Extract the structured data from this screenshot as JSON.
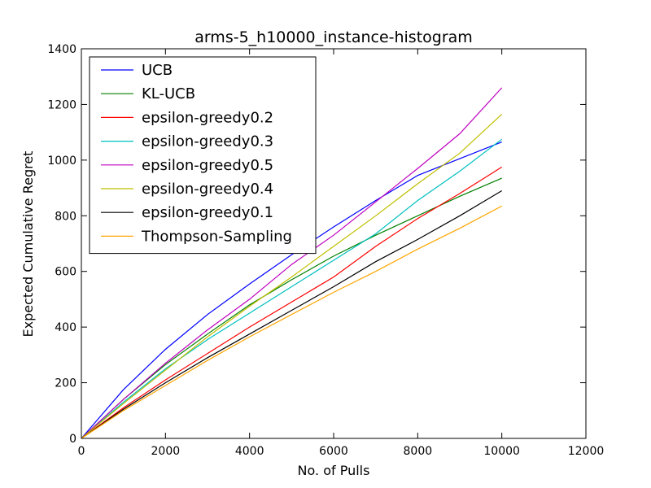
{
  "chart_data": {
    "type": "line",
    "title": "arms-5_h10000_instance-histogram",
    "xlabel": "No. of Pulls",
    "ylabel": "Expected Cumulative Regret",
    "xlim": [
      0,
      12000
    ],
    "ylim": [
      0,
      1400
    ],
    "xticks": [
      0,
      2000,
      4000,
      6000,
      8000,
      10000,
      12000
    ],
    "yticks": [
      0,
      200,
      400,
      600,
      800,
      1000,
      1200,
      1400
    ],
    "grid": false,
    "legend_position": "top-left",
    "series": [
      {
        "name": "UCB",
        "color": "#0000ff",
        "x": [
          0,
          1000,
          2000,
          3000,
          4000,
          5000,
          6000,
          7000,
          8000,
          9000,
          10000
        ],
        "y": [
          0,
          175,
          320,
          445,
          555,
          660,
          760,
          855,
          945,
          1005,
          1065
        ]
      },
      {
        "name": "KL-UCB",
        "color": "#008000",
        "x": [
          0,
          1000,
          2000,
          3000,
          4000,
          5000,
          6000,
          7000,
          8000,
          9000,
          10000
        ],
        "y": [
          0,
          140,
          265,
          375,
          480,
          570,
          655,
          730,
          800,
          870,
          935
        ]
      },
      {
        "name": "epsilon-greedy0.2",
        "color": "#ff0000",
        "x": [
          0,
          1000,
          2000,
          3000,
          4000,
          5000,
          6000,
          7000,
          8000,
          9000,
          10000
        ],
        "y": [
          0,
          110,
          210,
          305,
          400,
          490,
          580,
          690,
          790,
          880,
          975
        ]
      },
      {
        "name": "epsilon-greedy0.3",
        "color": "#00bfbf",
        "x": [
          0,
          1000,
          2000,
          3000,
          4000,
          5000,
          6000,
          7000,
          8000,
          9000,
          10000
        ],
        "y": [
          0,
          130,
          250,
          355,
          450,
          545,
          640,
          735,
          855,
          960,
          1075
        ]
      },
      {
        "name": "epsilon-greedy0.5",
        "color": "#bf00bf",
        "x": [
          0,
          1000,
          2000,
          3000,
          4000,
          5000,
          6000,
          7000,
          8000,
          9000,
          10000
        ],
        "y": [
          0,
          140,
          270,
          390,
          500,
          625,
          730,
          850,
          970,
          1095,
          1260
        ]
      },
      {
        "name": "epsilon-greedy0.4",
        "color": "#bfbf00",
        "x": [
          0,
          1000,
          2000,
          3000,
          4000,
          5000,
          6000,
          7000,
          8000,
          9000,
          10000
        ],
        "y": [
          0,
          125,
          245,
          365,
          475,
          580,
          690,
          800,
          915,
          1025,
          1165
        ]
      },
      {
        "name": "epsilon-greedy0.1",
        "color": "#000000",
        "x": [
          0,
          1000,
          2000,
          3000,
          4000,
          5000,
          6000,
          7000,
          8000,
          9000,
          10000
        ],
        "y": [
          0,
          105,
          200,
          290,
          375,
          460,
          545,
          635,
          715,
          800,
          890
        ]
      },
      {
        "name": "Thompson-Sampling",
        "color": "#ffa500",
        "x": [
          0,
          1000,
          2000,
          3000,
          4000,
          5000,
          6000,
          7000,
          8000,
          9000,
          10000
        ],
        "y": [
          0,
          100,
          190,
          280,
          365,
          445,
          525,
          600,
          680,
          755,
          835
        ]
      }
    ]
  }
}
